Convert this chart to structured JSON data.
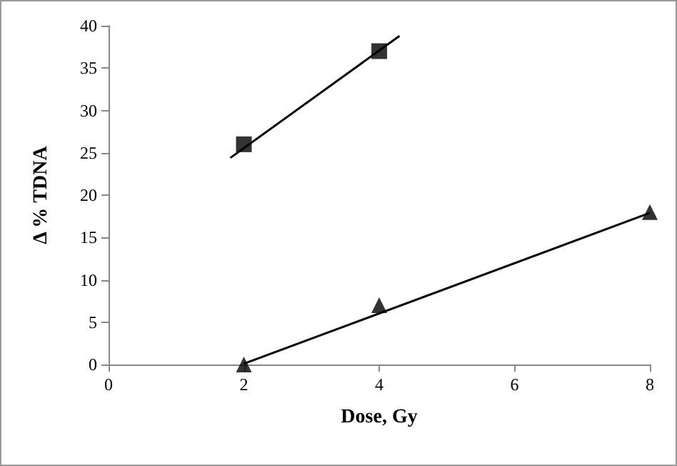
{
  "chart_data": {
    "type": "scatter",
    "xlabel": "Dose, Gy",
    "ylabel": "Δ % TDNA",
    "xlim": [
      0,
      8
    ],
    "xticks": [
      0,
      2,
      4,
      6,
      8
    ],
    "ylim": [
      0,
      40
    ],
    "yticks": [
      0,
      5,
      10,
      15,
      20,
      25,
      30,
      35,
      40
    ],
    "grid": false,
    "series": [
      {
        "marker": "square",
        "color": "#000000",
        "x": [
          2,
          4
        ],
        "values": [
          26,
          37
        ]
      },
      {
        "marker": "triangle",
        "color": "#000000",
        "x": [
          2,
          4,
          8
        ],
        "values": [
          0,
          7,
          18
        ]
      },
      {
        "type": "line",
        "marker": "none",
        "color": "#000000",
        "x": [
          1.8,
          4.3
        ],
        "values": [
          24.4,
          38.8
        ]
      },
      {
        "type": "line",
        "marker": "none",
        "color": "#000000",
        "x": [
          2,
          8
        ],
        "values": [
          0.1,
          17.9
        ]
      }
    ]
  }
}
